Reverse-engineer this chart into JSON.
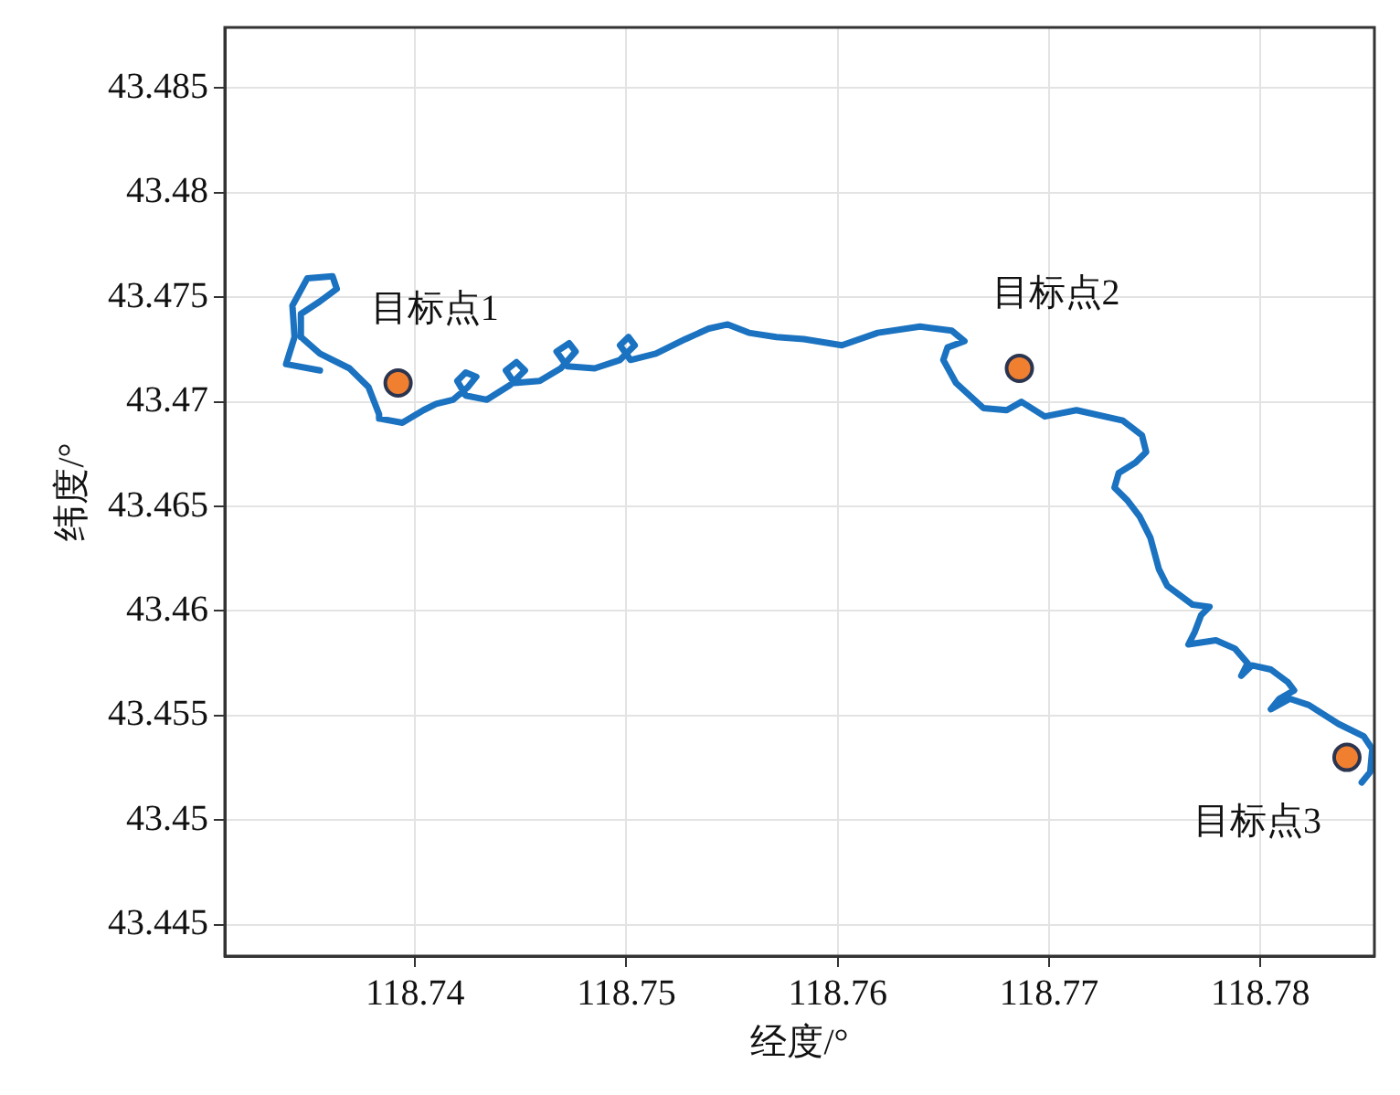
{
  "chart_data": {
    "type": "line",
    "xlabel": "经度/°",
    "ylabel": "纬度/°",
    "xlim": [
      118.731,
      118.7854
    ],
    "ylim": [
      43.4435,
      43.4879
    ],
    "xticks": [
      118.74,
      118.75,
      118.76,
      118.77,
      118.78
    ],
    "yticks": [
      43.445,
      43.45,
      43.455,
      43.46,
      43.465,
      43.47,
      43.475,
      43.48,
      43.485
    ],
    "grid": true,
    "legend": false,
    "marker": "none",
    "line_style": "solid",
    "series": [
      {
        "color": "#1a72c0",
        "x": [
          118.7355,
          118.7339,
          118.7343,
          118.7342,
          118.7349,
          118.7361,
          118.7363,
          118.7355,
          118.7346,
          118.7346,
          118.7355,
          118.7369,
          118.7378,
          118.7383,
          118.7383,
          118.7394,
          118.7404,
          118.741,
          118.7418,
          118.7425,
          118.7429,
          118.7424,
          118.742,
          118.7424,
          118.7434,
          118.7445,
          118.7452,
          118.7448,
          118.7443,
          118.7447,
          118.7459,
          118.7469,
          118.7476,
          118.7473,
          118.7467,
          118.7472,
          118.7485,
          118.7497,
          118.7504,
          118.7501,
          118.7497,
          118.7502,
          118.7514,
          118.7528,
          118.7539,
          118.7548,
          118.7558,
          118.7571,
          118.7584,
          118.7602,
          118.7619,
          118.7639,
          118.7654,
          118.766,
          118.7652,
          118.765,
          118.7656,
          118.7669,
          118.768,
          118.7687,
          118.7698,
          118.7713,
          118.7735,
          118.7744,
          118.7746,
          118.7741,
          118.7733,
          118.7731,
          118.7737,
          118.7743,
          118.7748,
          118.7752,
          118.7756,
          118.7768,
          118.7776,
          118.7772,
          118.7769,
          118.7766,
          118.7779,
          118.7788,
          118.7794,
          118.7791,
          118.7796,
          118.7805,
          118.7813,
          118.7816,
          118.7809,
          118.7805,
          118.7814,
          118.7823,
          118.7837,
          118.7849,
          118.7853,
          118.7852,
          118.7848
        ],
        "values": [
          43.4715,
          43.4718,
          43.4731,
          43.4746,
          43.4759,
          43.476,
          43.4754,
          43.4748,
          43.4742,
          43.4731,
          43.4723,
          43.4716,
          43.4707,
          43.4694,
          43.4692,
          43.469,
          43.4696,
          43.4699,
          43.4701,
          43.4707,
          43.4712,
          43.4714,
          43.471,
          43.4703,
          43.4701,
          43.4708,
          43.4715,
          43.4719,
          43.4715,
          43.4709,
          43.471,
          43.4716,
          43.4724,
          43.4728,
          43.4724,
          43.4717,
          43.4716,
          43.472,
          43.4727,
          43.4731,
          43.4727,
          43.472,
          43.4723,
          43.473,
          43.4735,
          43.4737,
          43.4733,
          43.4731,
          43.473,
          43.4727,
          43.4733,
          43.4736,
          43.4734,
          43.4729,
          43.4726,
          43.472,
          43.4709,
          43.4697,
          43.4696,
          43.47,
          43.4693,
          43.4696,
          43.4691,
          43.4684,
          43.4676,
          43.4671,
          43.4666,
          43.4659,
          43.4653,
          43.4645,
          43.4635,
          43.462,
          43.4612,
          43.4603,
          43.4602,
          43.4598,
          43.459,
          43.4584,
          43.4586,
          43.4582,
          43.4575,
          43.4569,
          43.4574,
          43.4572,
          43.4566,
          43.4562,
          43.4558,
          43.4553,
          43.4558,
          43.4555,
          43.4546,
          43.454,
          43.4534,
          43.4523,
          43.4518
        ]
      },
      {
        "type": "scatter",
        "color": "#f08030",
        "marker": "circle",
        "x": [
          118.7392,
          118.7686,
          118.7841
        ],
        "values": [
          43.4709,
          43.4716,
          43.453
        ]
      }
    ],
    "annotations": [
      {
        "text": "目标点1",
        "x": 118.7392,
        "y": 43.4709
      },
      {
        "text": "目标点2",
        "x": 118.7686,
        "y": 43.4716
      },
      {
        "text": "目标点3",
        "x": 118.7841,
        "y": 43.453
      }
    ]
  }
}
